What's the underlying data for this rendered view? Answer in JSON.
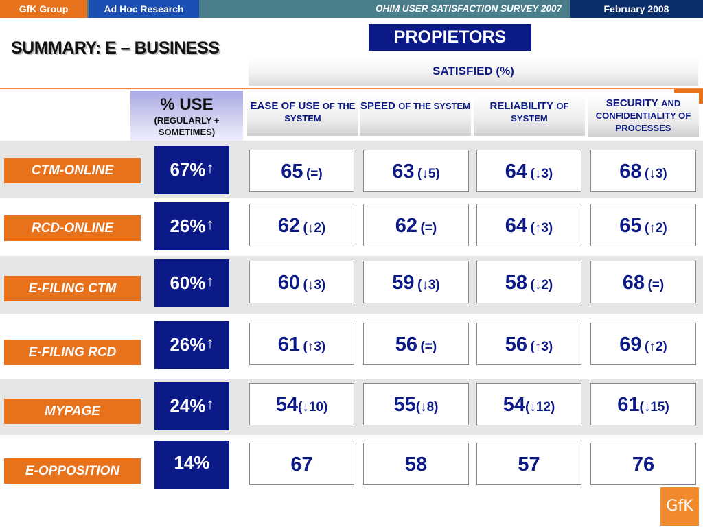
{
  "topbar": {
    "company": "GfK Group",
    "division": "Ad Hoc Research",
    "survey": "OHIM USER SATISFACTION SURVEY 2007",
    "date": "February  2008"
  },
  "title": "SUMMARY: E – BUSINESS",
  "segment": "PROPIETORS",
  "satisfied_header": "SATISFIED (%)",
  "columns": {
    "use": {
      "main": "% USE",
      "sub": "(REGULARLY + SOMETIMES)"
    },
    "ease": {
      "main": "EASE OF USE",
      "sub": "OF THE SYSTEM"
    },
    "speed": {
      "main": "SPEED",
      "sub": "OF THE SYSTEM"
    },
    "reliability": {
      "main": "RELIABILITY",
      "sub": "OF SYSTEM"
    },
    "security": {
      "main": "SECURITY",
      "sub": "AND CONFIDENTIALITY OF PROCESSES"
    }
  },
  "rows": [
    {
      "label": "CTM-ONLINE",
      "use": "67%",
      "use_trend": "up",
      "cells": [
        {
          "value": "65",
          "delta": "(=)",
          "trend": ""
        },
        {
          "value": "63",
          "delta": "5)",
          "trend": "down"
        },
        {
          "value": "64",
          "delta": "3)",
          "trend": "down"
        },
        {
          "value": "68",
          "delta": "3)",
          "trend": "down"
        }
      ]
    },
    {
      "label": "RCD-ONLINE",
      "use": "26%",
      "use_trend": "up",
      "cells": [
        {
          "value": "62",
          "delta": "2)",
          "trend": "down"
        },
        {
          "value": "62",
          "delta": "(=)",
          "trend": ""
        },
        {
          "value": "64",
          "delta": "3)",
          "trend": "up"
        },
        {
          "value": "65",
          "delta": "2)",
          "trend": "up"
        }
      ]
    },
    {
      "label": "E-FILING CTM",
      "use": "60%",
      "use_trend": "up",
      "cells": [
        {
          "value": "60",
          "delta": "3)",
          "trend": "down"
        },
        {
          "value": "59",
          "delta": "3)",
          "trend": "down"
        },
        {
          "value": "58",
          "delta": "2)",
          "trend": "down"
        },
        {
          "value": "68",
          "delta": "(=)",
          "trend": ""
        }
      ]
    },
    {
      "label": "E-FILING RCD",
      "use": "26%",
      "use_trend": "up",
      "cells": [
        {
          "value": "61",
          "delta": "3)",
          "trend": "up"
        },
        {
          "value": "56",
          "delta": "(=)",
          "trend": ""
        },
        {
          "value": "56",
          "delta": "3)",
          "trend": "up"
        },
        {
          "value": "69",
          "delta": "2)",
          "trend": "up"
        }
      ]
    },
    {
      "label": "MYPAGE",
      "use": "24%",
      "use_trend": "up",
      "cells": [
        {
          "value": "54",
          "delta": "10)",
          "trend": "down"
        },
        {
          "value": "55",
          "delta": "8)",
          "trend": "down"
        },
        {
          "value": "54",
          "delta": "12)",
          "trend": "down"
        },
        {
          "value": "61",
          "delta": "15)",
          "trend": "down"
        }
      ]
    },
    {
      "label": "E-OPPOSITION",
      "use": "14%",
      "use_trend": "",
      "cells": [
        {
          "value": "67",
          "delta": "",
          "trend": ""
        },
        {
          "value": "58",
          "delta": "",
          "trend": ""
        },
        {
          "value": "57",
          "delta": "",
          "trend": ""
        },
        {
          "value": "76",
          "delta": "",
          "trend": ""
        }
      ]
    }
  ],
  "logo": "GfK",
  "colors": {
    "orange": "#e8711c",
    "navy": "#0b1a86",
    "blue": "#1b4fb3",
    "teal": "#4a7e8a"
  }
}
